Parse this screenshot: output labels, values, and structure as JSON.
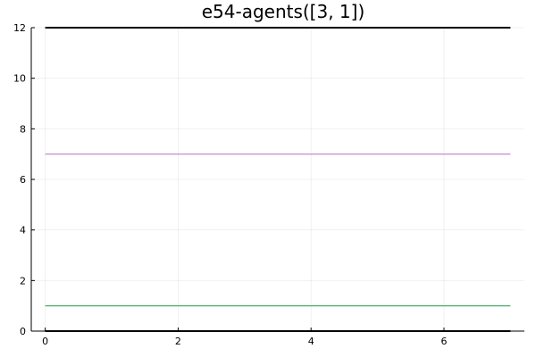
{
  "chart_data": {
    "type": "line",
    "title": "e54-agents([3, 1])",
    "xlabel": "",
    "ylabel": "",
    "xlim": [
      -0.21,
      7.21
    ],
    "ylim": [
      0,
      12
    ],
    "x_ticks": [
      0,
      2,
      4,
      6
    ],
    "y_ticks": [
      0,
      2,
      4,
      6,
      8,
      10,
      12
    ],
    "grid": true,
    "legend": "none",
    "series": [
      {
        "color": "#000000",
        "x": [
          0,
          7
        ],
        "y": [
          12,
          12
        ]
      },
      {
        "color": "#c27ccf",
        "x": [
          0,
          7
        ],
        "y": [
          7,
          7
        ]
      },
      {
        "color": "#3aa55a",
        "x": [
          0,
          7
        ],
        "y": [
          1,
          1
        ]
      },
      {
        "color": "#000000",
        "x": [
          0,
          7
        ],
        "y": [
          0,
          0
        ]
      }
    ]
  }
}
